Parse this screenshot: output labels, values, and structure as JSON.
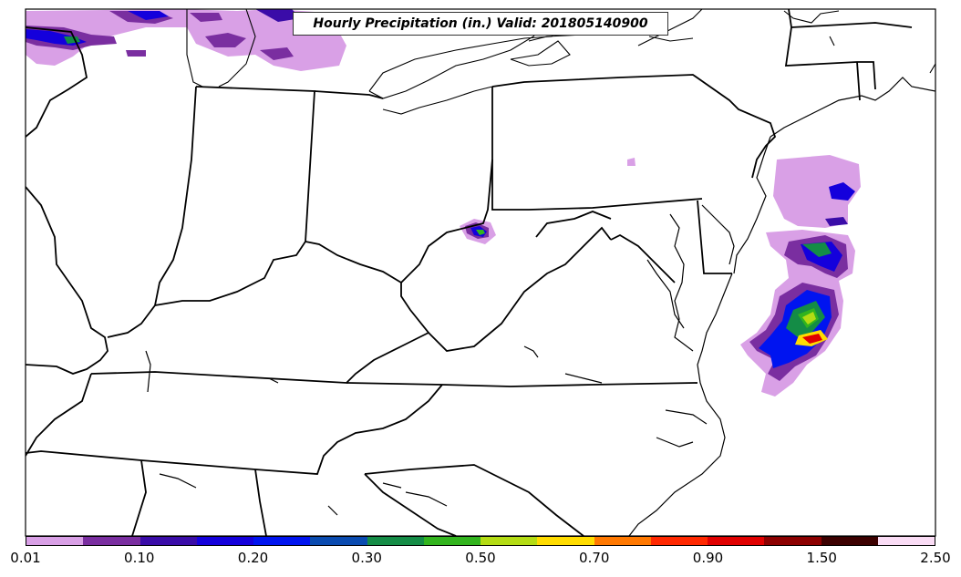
{
  "title": "Hourly Precipitation (in.) Valid: 201805140900",
  "colorbar": {
    "colors": [
      "#d9a0e6",
      "#7a2ea0",
      "#3a0ca8",
      "#1400dc",
      "#0014f0",
      "#0a4bb0",
      "#148c46",
      "#32b41e",
      "#b4dc14",
      "#ffdc00",
      "#ff7800",
      "#ff2800",
      "#e00000",
      "#8c0000",
      "#3c0000",
      "#fadcf5"
    ],
    "tick_labels": [
      "0.01",
      "0.10",
      "0.20",
      "0.30",
      "0.50",
      "0.70",
      "0.90",
      "1.50",
      "2.50"
    ]
  }
}
